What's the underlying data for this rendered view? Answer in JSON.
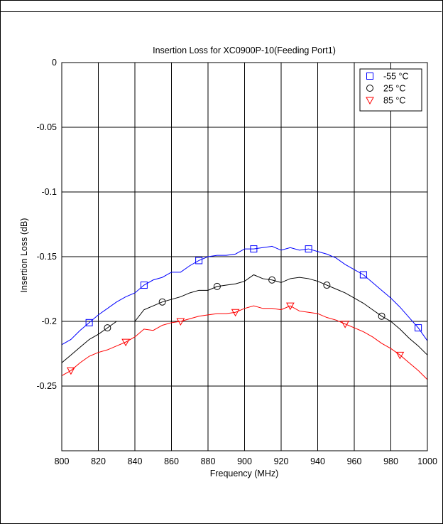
{
  "chart_data": {
    "type": "line",
    "title": "Insertion Loss for XC0900P-10(Feeding Port1)",
    "xlabel": "Frequency (MHz)",
    "ylabel": "Insertion Loss (dB)",
    "xlim": [
      800,
      1000
    ],
    "ylim": [
      -0.3,
      0
    ],
    "xticks": [
      "800",
      "820",
      "840",
      "860",
      "880",
      "900",
      "920",
      "940",
      "960",
      "980",
      "1000"
    ],
    "yticks": [
      "0",
      "-0.05",
      "-0.1",
      "-0.15",
      "-0.2",
      "-0.25"
    ],
    "grid": true,
    "legend_position": "top-right",
    "series": [
      {
        "name": "-55 °C",
        "color": "#0000ff",
        "marker": "square",
        "x": [
          800,
          805,
          810,
          815,
          820,
          825,
          830,
          835,
          840,
          845,
          850,
          855,
          860,
          865,
          870,
          875,
          880,
          885,
          890,
          895,
          900,
          905,
          910,
          915,
          920,
          925,
          930,
          935,
          940,
          945,
          950,
          955,
          960,
          965,
          970,
          975,
          980,
          985,
          990,
          995,
          1000
        ],
        "y": [
          -0.218,
          -0.214,
          -0.207,
          -0.201,
          -0.195,
          -0.19,
          -0.185,
          -0.181,
          -0.178,
          -0.172,
          -0.168,
          -0.166,
          -0.162,
          -0.162,
          -0.157,
          -0.153,
          -0.15,
          -0.149,
          -0.149,
          -0.148,
          -0.144,
          -0.144,
          -0.143,
          -0.142,
          -0.145,
          -0.143,
          -0.145,
          -0.144,
          -0.146,
          -0.148,
          -0.151,
          -0.156,
          -0.16,
          -0.164,
          -0.17,
          -0.176,
          -0.182,
          -0.189,
          -0.197,
          -0.205,
          -0.215
        ]
      },
      {
        "name": "25 °C",
        "color": "#000000",
        "marker": "circle",
        "x": [
          800,
          805,
          810,
          815,
          820,
          825,
          830,
          835,
          840,
          845,
          850,
          855,
          860,
          865,
          870,
          875,
          880,
          885,
          890,
          895,
          900,
          905,
          910,
          915,
          920,
          925,
          930,
          935,
          940,
          945,
          950,
          955,
          960,
          965,
          970,
          975,
          980,
          985,
          990,
          995,
          1000
        ],
        "y": [
          -0.232,
          -0.226,
          -0.22,
          -0.214,
          -0.21,
          -0.205,
          -0.2,
          -0.2,
          -0.2,
          -0.191,
          -0.188,
          -0.185,
          -0.183,
          -0.181,
          -0.178,
          -0.176,
          -0.176,
          -0.173,
          -0.172,
          -0.171,
          -0.169,
          -0.164,
          -0.167,
          -0.168,
          -0.17,
          -0.167,
          -0.166,
          -0.167,
          -0.169,
          -0.172,
          -0.175,
          -0.178,
          -0.182,
          -0.186,
          -0.191,
          -0.196,
          -0.2,
          -0.206,
          -0.213,
          -0.219,
          -0.226
        ]
      },
      {
        "name": "85 °C",
        "color": "#ff0000",
        "marker": "triangle-down",
        "x": [
          800,
          805,
          810,
          815,
          820,
          825,
          830,
          835,
          840,
          845,
          850,
          855,
          860,
          865,
          870,
          875,
          880,
          885,
          890,
          895,
          900,
          905,
          910,
          915,
          920,
          925,
          930,
          935,
          940,
          945,
          950,
          955,
          960,
          965,
          970,
          975,
          980,
          985,
          990,
          995,
          1000
        ],
        "y": [
          -0.242,
          -0.238,
          -0.232,
          -0.227,
          -0.224,
          -0.222,
          -0.219,
          -0.216,
          -0.212,
          -0.206,
          -0.207,
          -0.203,
          -0.201,
          -0.2,
          -0.198,
          -0.196,
          -0.195,
          -0.194,
          -0.194,
          -0.193,
          -0.19,
          -0.188,
          -0.19,
          -0.19,
          -0.191,
          -0.188,
          -0.192,
          -0.193,
          -0.194,
          -0.197,
          -0.199,
          -0.202,
          -0.205,
          -0.208,
          -0.212,
          -0.217,
          -0.221,
          -0.226,
          -0.232,
          -0.238,
          -0.245
        ]
      }
    ]
  }
}
